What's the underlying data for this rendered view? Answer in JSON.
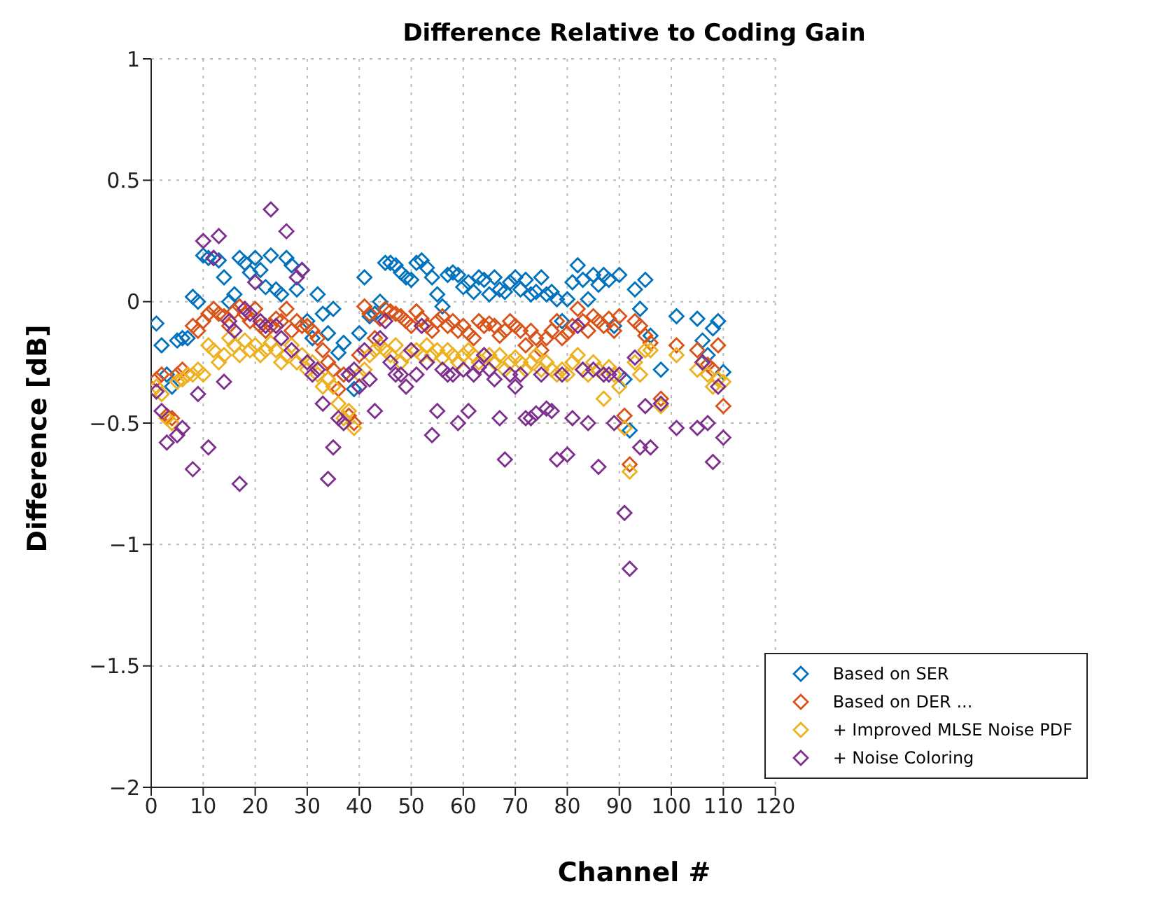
{
  "chart_data": {
    "type": "scatter",
    "title": "Difference Relative to Coding Gain",
    "xlabel": "Channel #",
    "ylabel": "Difference [dB]",
    "x": [
      1,
      2,
      3,
      4,
      5,
      6,
      7,
      8,
      9,
      10,
      11,
      12,
      13,
      14,
      15,
      16,
      17,
      18,
      19,
      20,
      21,
      22,
      23,
      24,
      25,
      26,
      27,
      28,
      29,
      30,
      31,
      32,
      33,
      34,
      35,
      36,
      37,
      38,
      39,
      40,
      41,
      42,
      43,
      44,
      45,
      46,
      47,
      48,
      49,
      50,
      51,
      52,
      53,
      54,
      55,
      56,
      57,
      58,
      59,
      60,
      61,
      62,
      63,
      64,
      65,
      66,
      67,
      68,
      69,
      70,
      71,
      72,
      73,
      74,
      75,
      76,
      77,
      78,
      79,
      80,
      81,
      82,
      83,
      84,
      85,
      86,
      87,
      88,
      89,
      90,
      91,
      92,
      93,
      94,
      95,
      96,
      98,
      101,
      105,
      106,
      107,
      108,
      109,
      110
    ],
    "series": [
      {
        "name": "Based on SER",
        "color": "#0072bd",
        "values": [
          -0.09,
          -0.18,
          -0.3,
          -0.35,
          -0.16,
          -0.15,
          -0.15,
          0.02,
          0,
          0.19,
          0.18,
          0.18,
          0.17,
          0.1,
          0,
          0.03,
          0.18,
          0.16,
          0.12,
          0.18,
          0.13,
          0.06,
          0.19,
          0.05,
          0.03,
          0.18,
          0.15,
          0.05,
          0.13,
          -0.08,
          -0.15,
          0.03,
          -0.05,
          -0.13,
          -0.03,
          -0.21,
          -0.17,
          -0.3,
          -0.36,
          -0.13,
          0.1,
          -0.06,
          -0.05,
          0,
          0.16,
          0.16,
          0.15,
          0.12,
          0.1,
          0.09,
          0.16,
          0.17,
          0.14,
          0.1,
          0.03,
          -0.02,
          0.11,
          0.12,
          0.11,
          0.06,
          0.08,
          0.04,
          0.1,
          0.09,
          0.03,
          0.1,
          0.05,
          0.04,
          0.08,
          0.1,
          0.05,
          0.09,
          0.03,
          0.04,
          0.1,
          0.03,
          0.04,
          0.01,
          -0.08,
          0.01,
          0.08,
          0.15,
          0.09,
          0.01,
          0.11,
          0.07,
          0.11,
          0.09,
          -0.1,
          0.11,
          -0.32,
          -0.53,
          0.05,
          -0.03,
          0.09,
          -0.14,
          -0.28,
          -0.06,
          -0.07,
          -0.16,
          -0.22,
          -0.11,
          -0.08,
          -0.29
        ]
      },
      {
        "name": "Based on DER ...",
        "color": "#d95319",
        "values": [
          -0.32,
          -0.3,
          -0.47,
          -0.48,
          -0.3,
          -0.28,
          -0.3,
          -0.1,
          -0.12,
          -0.08,
          -0.05,
          -0.03,
          -0.05,
          -0.06,
          -0.1,
          -0.04,
          -0.02,
          -0.05,
          -0.08,
          -0.03,
          -0.1,
          -0.12,
          -0.1,
          -0.07,
          -0.08,
          -0.03,
          -0.12,
          -0.08,
          -0.1,
          -0.1,
          -0.12,
          -0.15,
          -0.2,
          -0.25,
          -0.28,
          -0.36,
          -0.3,
          -0.47,
          -0.5,
          -0.22,
          -0.02,
          -0.05,
          -0.15,
          -0.07,
          -0.03,
          -0.04,
          -0.05,
          -0.06,
          -0.08,
          -0.1,
          -0.04,
          -0.07,
          -0.1,
          -0.12,
          -0.08,
          -0.06,
          -0.1,
          -0.08,
          -0.12,
          -0.1,
          -0.13,
          -0.15,
          -0.08,
          -0.1,
          -0.09,
          -0.1,
          -0.14,
          -0.12,
          -0.08,
          -0.1,
          -0.12,
          -0.18,
          -0.12,
          -0.15,
          -0.2,
          -0.15,
          -0.12,
          -0.08,
          -0.15,
          -0.13,
          -0.1,
          -0.03,
          -0.08,
          -0.12,
          -0.06,
          -0.08,
          -0.1,
          -0.07,
          -0.12,
          -0.06,
          -0.47,
          -0.67,
          -0.08,
          -0.1,
          -0.14,
          -0.17,
          -0.4,
          -0.18,
          -0.2,
          -0.25,
          -0.26,
          -0.28,
          -0.18,
          -0.43
        ]
      },
      {
        "name": "+ Improved MLSE Noise PDF",
        "color": "#edb120",
        "values": [
          -0.35,
          -0.38,
          -0.48,
          -0.5,
          -0.33,
          -0.32,
          -0.3,
          -0.3,
          -0.28,
          -0.3,
          -0.18,
          -0.2,
          -0.25,
          -0.22,
          -0.15,
          -0.18,
          -0.22,
          -0.16,
          -0.2,
          -0.18,
          -0.22,
          -0.2,
          -0.17,
          -0.2,
          -0.25,
          -0.22,
          -0.18,
          -0.25,
          -0.22,
          -0.28,
          -0.25,
          -0.3,
          -0.35,
          -0.32,
          -0.35,
          -0.42,
          -0.48,
          -0.45,
          -0.52,
          -0.3,
          -0.28,
          -0.22,
          -0.2,
          -0.18,
          -0.2,
          -0.22,
          -0.18,
          -0.25,
          -0.22,
          -0.2,
          -0.2,
          -0.22,
          -0.18,
          -0.22,
          -0.2,
          -0.23,
          -0.2,
          -0.22,
          -0.25,
          -0.22,
          -0.2,
          -0.22,
          -0.25,
          -0.22,
          -0.22,
          -0.25,
          -0.22,
          -0.28,
          -0.25,
          -0.23,
          -0.25,
          -0.28,
          -0.25,
          -0.22,
          -0.28,
          -0.25,
          -0.28,
          -0.3,
          -0.28,
          -0.3,
          -0.25,
          -0.22,
          -0.28,
          -0.3,
          -0.25,
          -0.28,
          -0.4,
          -0.27,
          -0.3,
          -0.35,
          -0.52,
          -0.7,
          -0.25,
          -0.3,
          -0.2,
          -0.2,
          -0.43,
          -0.22,
          -0.28,
          -0.25,
          -0.3,
          -0.35,
          -0.32,
          -0.33
        ]
      },
      {
        "name": "+ Noise Coloring",
        "color": "#7e2f8e",
        "values": [
          -0.37,
          -0.45,
          -0.58,
          null,
          -0.55,
          -0.52,
          null,
          -0.69,
          -0.38,
          0.25,
          -0.6,
          0.18,
          0.27,
          -0.33,
          -0.08,
          -0.12,
          -0.75,
          -0.03,
          -0.05,
          0.08,
          -0.08,
          -0.1,
          0.38,
          -0.1,
          -0.15,
          0.29,
          -0.2,
          0.1,
          0.13,
          -0.25,
          -0.3,
          -0.28,
          -0.42,
          -0.73,
          -0.6,
          -0.48,
          -0.5,
          -0.3,
          -0.28,
          -0.35,
          -0.2,
          -0.32,
          -0.45,
          -0.15,
          -0.08,
          -0.25,
          -0.3,
          -0.3,
          -0.35,
          -0.2,
          -0.3,
          -0.1,
          -0.25,
          -0.55,
          -0.45,
          -0.28,
          -0.3,
          -0.3,
          -0.5,
          -0.28,
          -0.45,
          -0.3,
          -0.27,
          -0.22,
          -0.28,
          -0.32,
          -0.48,
          -0.65,
          -0.3,
          -0.35,
          -0.3,
          -0.48,
          -0.48,
          -0.46,
          -0.3,
          -0.44,
          -0.45,
          -0.65,
          -0.3,
          -0.63,
          -0.48,
          -0.1,
          -0.28,
          -0.5,
          -0.28,
          -0.68,
          -0.3,
          -0.3,
          -0.5,
          -0.3,
          -0.87,
          -1.1,
          -0.23,
          -0.6,
          -0.43,
          -0.6,
          -0.42,
          -0.52,
          -0.52,
          -0.25,
          -0.5,
          -0.66,
          -0.35,
          -0.56
        ]
      }
    ],
    "xlim": [
      0,
      120
    ],
    "xticks": [
      0,
      10,
      20,
      30,
      40,
      50,
      60,
      70,
      80,
      90,
      100,
      110,
      120
    ],
    "ylim": [
      -2,
      1
    ],
    "yticks": [
      -2,
      -1.5,
      -1,
      -0.5,
      0,
      0.5,
      1
    ],
    "grid": true,
    "legend": "bottom right",
    "marker": "diamond"
  }
}
